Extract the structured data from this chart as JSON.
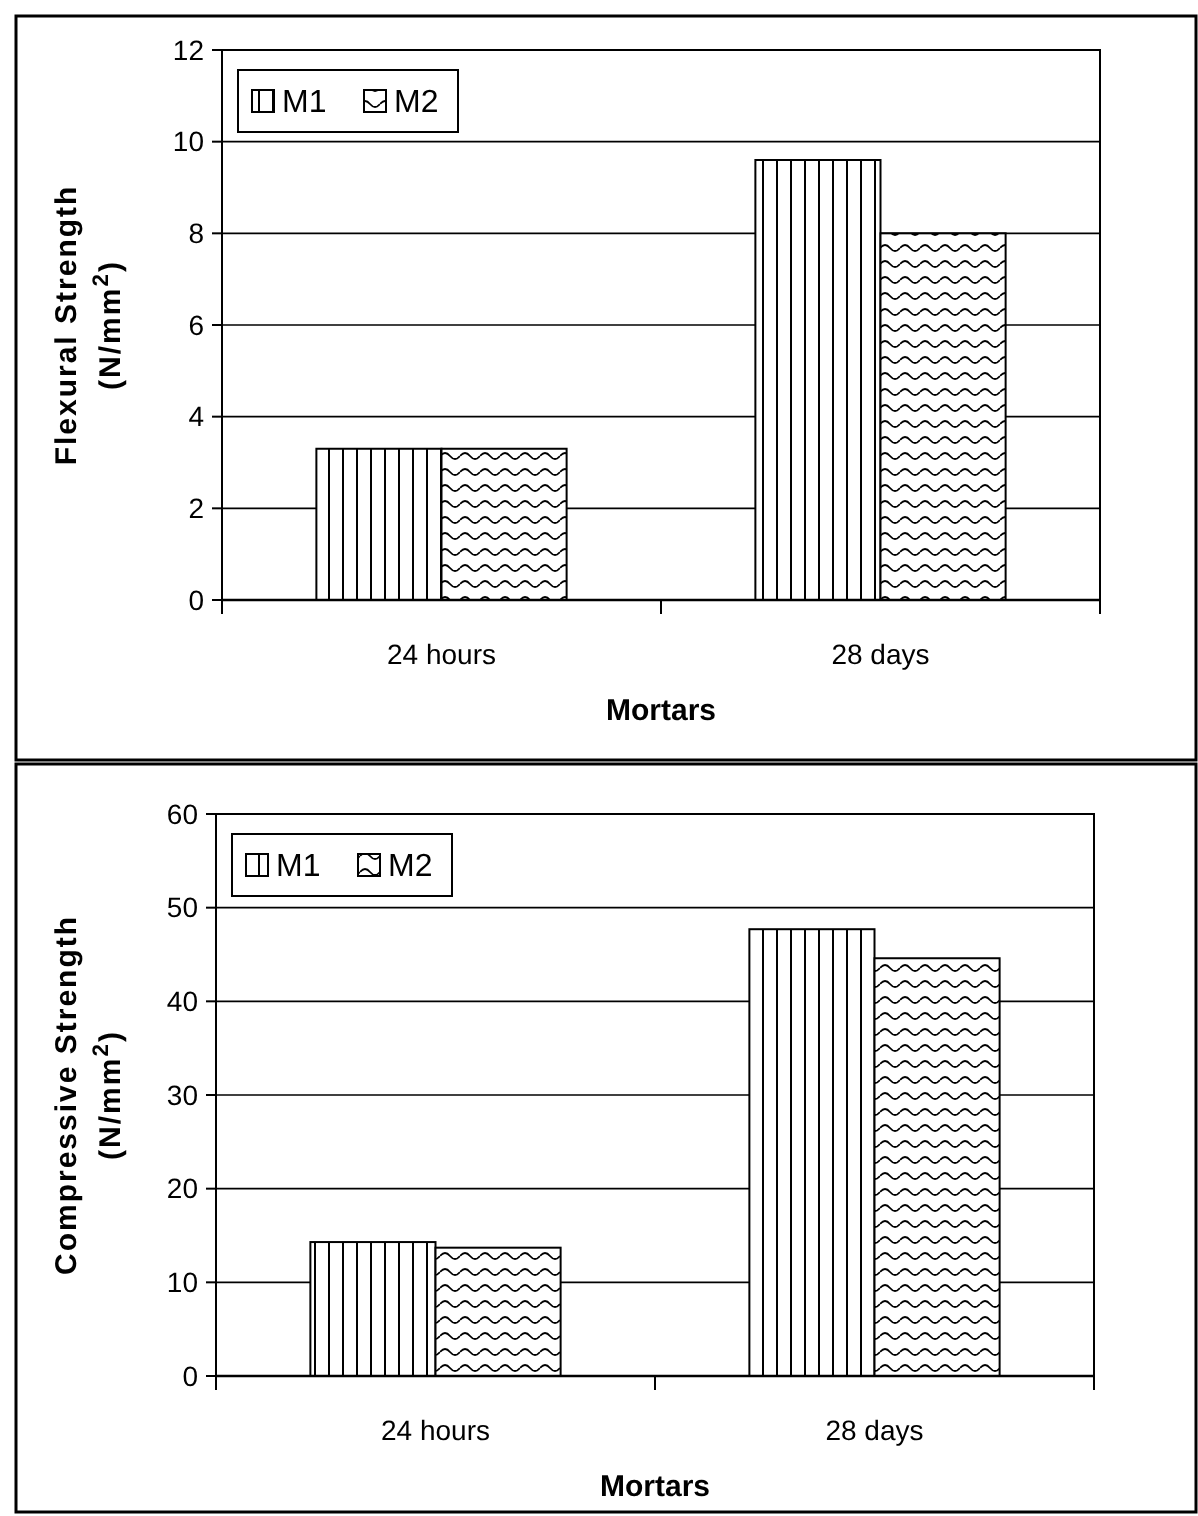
{
  "chart_data": [
    {
      "type": "bar",
      "xlabel": "Mortars",
      "ylabel": "Flexural Strength\n(N/mm$^{2}$)",
      "categories": [
        "24 hours",
        "28 days"
      ],
      "series": [
        {
          "name": "M1",
          "color": "#000000",
          "values": [
            3.3,
            9.6
          ]
        },
        {
          "name": "M2",
          "color": "#000000",
          "values": [
            3.3,
            8.0
          ]
        }
      ],
      "ylim": [
        0,
        12
      ],
      "yticks": [
        0,
        2,
        4,
        6,
        8,
        10,
        12
      ],
      "grid": "y",
      "legend": "top left"
    },
    {
      "type": "bar",
      "xlabel": "Mortars",
      "ylabel": "Compressive Strength\n(N/mm$^{2}$)",
      "categories": [
        "24 hours",
        "28 days"
      ],
      "series": [
        {
          "name": "M1",
          "color": "#000000",
          "values": [
            14.3,
            47.7
          ]
        },
        {
          "name": "M2",
          "color": "#000000",
          "values": [
            13.7,
            44.6
          ]
        }
      ],
      "ylim": [
        0,
        60
      ],
      "yticks": [
        0,
        10,
        20,
        30,
        40,
        50,
        60
      ],
      "grid": "y",
      "legend": "top left"
    }
  ]
}
